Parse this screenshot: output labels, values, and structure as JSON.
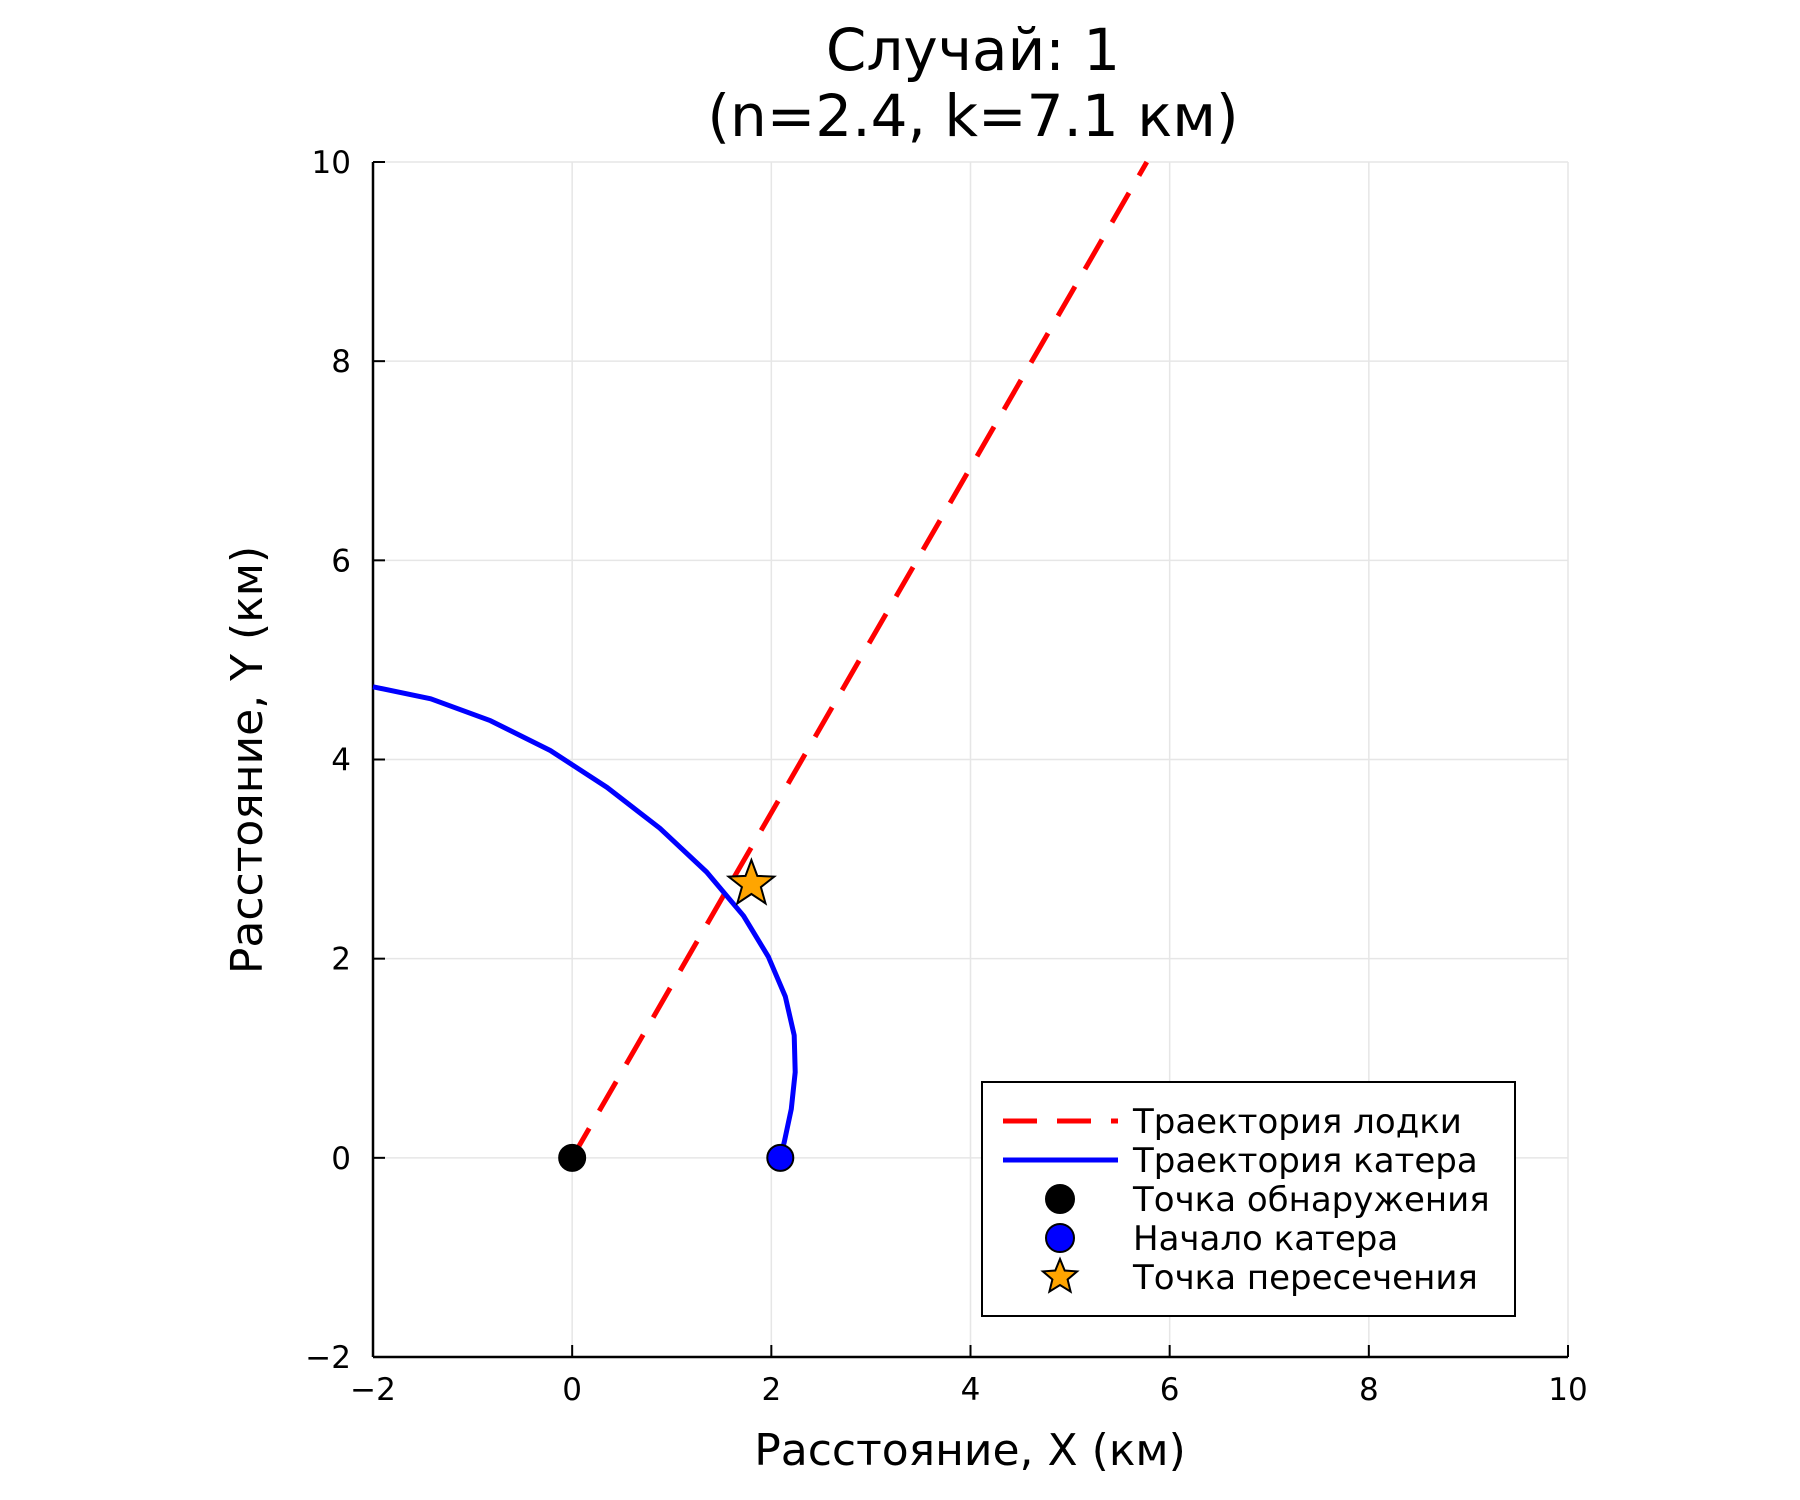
{
  "chart_data": {
    "type": "line",
    "title": "Случай: 1",
    "subtitle": "(n=2.4, k=7.1 км)",
    "xlabel": "Расстояние, X (км)",
    "ylabel": "Расстояние, Y (км)",
    "xlim": [
      -2,
      10
    ],
    "ylim": [
      -2,
      10
    ],
    "xticks": [
      -2,
      0,
      2,
      4,
      6,
      8,
      10
    ],
    "yticks": [
      -2,
      0,
      2,
      4,
      6,
      8,
      10
    ],
    "xtick_labels": [
      "−2",
      "0",
      "2",
      "4",
      "6",
      "8",
      "10"
    ],
    "ytick_labels": [
      "−2",
      "0",
      "2",
      "4",
      "6",
      "8",
      "10"
    ],
    "grid": true,
    "legend_position": "bottom-right",
    "series": [
      {
        "name": "Траектория лодки",
        "kind": "line",
        "style": "dashed",
        "color": "#ff0000",
        "x": [
          0,
          5.77
        ],
        "y": [
          0,
          10
        ]
      },
      {
        "name": "Траектория катера",
        "kind": "line",
        "style": "solid",
        "color": "#0000ff",
        "x": [
          2.09,
          2.13,
          2.2,
          2.24,
          2.23,
          2.14,
          1.97,
          1.72,
          1.35,
          0.88,
          0.35,
          -0.22,
          -0.82,
          -1.42,
          -2.0
        ],
        "y": [
          0,
          0.16,
          0.49,
          0.86,
          1.23,
          1.62,
          2.02,
          2.43,
          2.87,
          3.31,
          3.72,
          4.09,
          4.39,
          4.61,
          4.73
        ]
      },
      {
        "name": "Точка обнаружения",
        "kind": "marker",
        "marker": "circle",
        "color": "#000000",
        "x": [
          0
        ],
        "y": [
          0
        ]
      },
      {
        "name": "Начало катера",
        "kind": "marker",
        "marker": "circle",
        "color": "#0000ff",
        "x": [
          2.09
        ],
        "y": [
          0
        ]
      },
      {
        "name": "Точка пересечения",
        "kind": "marker",
        "marker": "star",
        "color": "#ffa500",
        "x": [
          1.8
        ],
        "y": [
          2.75
        ]
      }
    ]
  }
}
